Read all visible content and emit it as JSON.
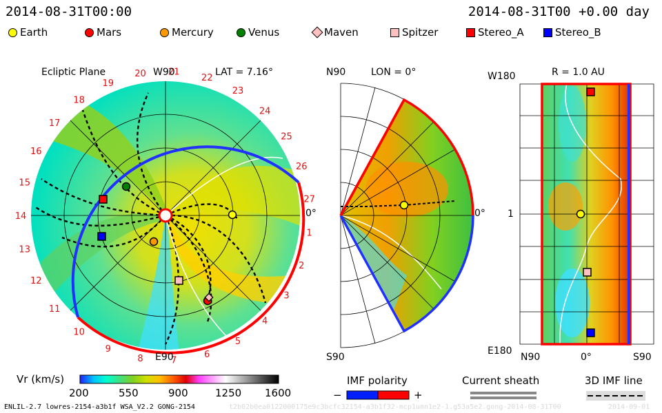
{
  "header": {
    "datetime": "2014-08-31T00:00",
    "forecast": "2014-08-31T00 +0.00 day"
  },
  "legend": [
    {
      "label": "Earth",
      "shape": "circle",
      "color": "#ffff00"
    },
    {
      "label": "Mars",
      "shape": "circle",
      "color": "#ff0000"
    },
    {
      "label": "Mercury",
      "shape": "circle",
      "color": "#ff9900"
    },
    {
      "label": "Venus",
      "shape": "circle",
      "color": "#008000"
    },
    {
      "label": "Maven",
      "shape": "diamond",
      "color": "#ffc0c0"
    },
    {
      "label": "Spitzer",
      "shape": "square",
      "color": "#ffc0c0"
    },
    {
      "label": "Stereo_A",
      "shape": "square",
      "color": "#ff0000"
    },
    {
      "label": "Stereo_B",
      "shape": "square",
      "color": "#0000ff"
    }
  ],
  "ecliptic": {
    "title": "Ecliptic Plane",
    "top_label": "W90",
    "bottom_label": "E90",
    "right_label": "0°",
    "lat_label": "LAT = 7.16°",
    "carrington_labels": [
      "1",
      "2",
      "3",
      "4",
      "5",
      "6",
      "7",
      "8",
      "9",
      "10",
      "11",
      "12",
      "13",
      "14",
      "15",
      "16",
      "17",
      "18",
      "19",
      "20",
      "21",
      "22",
      "23",
      "24",
      "25",
      "26",
      "27"
    ]
  },
  "meridional": {
    "top_label": "N90",
    "bottom_label": "S90",
    "lon_label": "LON = 0°",
    "right_label": "0°"
  },
  "radial": {
    "r_label": "R = 1.0 AU",
    "top_left": "W180",
    "mid_left": "1",
    "bottom_left": "E180",
    "bottom_n": "N90",
    "bottom_mid": "0°",
    "bottom_s": "S90"
  },
  "colorbar": {
    "label": "Vr (km/s)",
    "ticks": [
      "200",
      "550",
      "900",
      "1250",
      "1600"
    ],
    "stops": [
      "#2020ff",
      "#00c0ff",
      "#00ffd0",
      "#40e080",
      "#80d020",
      "#d0e000",
      "#ffc000",
      "#ff6000",
      "#e00000",
      "#ff40ff",
      "#ffa0ff",
      "#ffffff",
      "#c0c0c0",
      "#808080",
      "#404040",
      "#000000"
    ]
  },
  "keys": {
    "imf_title": "IMF polarity",
    "imf_minus": "−",
    "imf_plus": "+",
    "sheath_title": "Current sheath",
    "imf3d_title": "3D IMF line"
  },
  "footer": {
    "model": "ENLIL-2.7 lowres-2154-a3b1f WSA_V2.2 GONG-2154",
    "run_id": "t2b02b0ea0122000175e9c3bcfc32154-a3b1f32-mcp1umn1e2-1.g53a5e2.gong-2014-08-31T00",
    "date": "2014-09-01"
  }
}
